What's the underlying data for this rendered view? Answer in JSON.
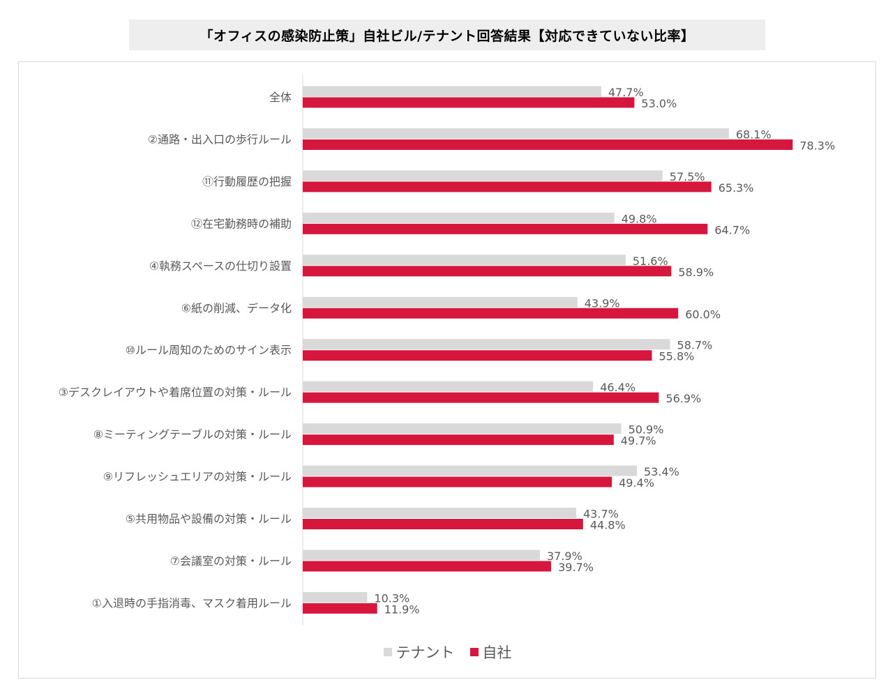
{
  "chart_data": {
    "type": "bar",
    "orientation": "horizontal",
    "title": "「オフィスの感染防止策」自社ビル/テナント回答結果【対応できていない比率】",
    "xlim": [
      0,
      100
    ],
    "value_suffix": "%",
    "legend_position": "bottom",
    "categories": [
      "全体",
      "②通路・出入口の歩行ルール",
      "⑪行動履歴の把握",
      "⑫在宅勤務時の補助",
      "④執務スペースの仕切り設置",
      "⑥紙の削減、データ化",
      "⑩ルール周知のためのサイン表示",
      "③デスクレイアウトや着席位置の対策・ルール",
      "⑧ミーティングテーブルの対策・ルール",
      "⑨リフレッシュエリアの対策・ルール",
      "⑤共用物品や設備の対策・ルール",
      "⑦会議室の対策・ルール",
      "①入退時の手指消毒、マスク着用ルール"
    ],
    "series": [
      {
        "name": "テナント",
        "color": "#d9d9d9",
        "values": [
          47.7,
          68.1,
          57.5,
          49.8,
          51.6,
          43.9,
          58.7,
          46.4,
          50.9,
          53.4,
          43.7,
          37.9,
          10.3
        ],
        "labels": [
          "47.7%",
          "68.1%",
          "57.5%",
          "49.8%",
          "51.6%",
          "43.9%",
          "58.7%",
          "46.4%",
          "50.9%",
          "53.4%",
          "43.7%",
          "37.9%",
          "10.3%"
        ]
      },
      {
        "name": "自社",
        "color": "#d6163c",
        "values": [
          53.0,
          78.3,
          65.3,
          64.7,
          58.9,
          60.0,
          55.8,
          56.9,
          49.7,
          49.4,
          44.8,
          39.7,
          11.9
        ],
        "labels": [
          "53.0%",
          "78.3%",
          "65.3%",
          "64.7%",
          "58.9%",
          "60.0%",
          "55.8%",
          "56.9%",
          "49.7%",
          "49.4%",
          "44.8%",
          "39.7%",
          "11.9%"
        ]
      }
    ]
  }
}
